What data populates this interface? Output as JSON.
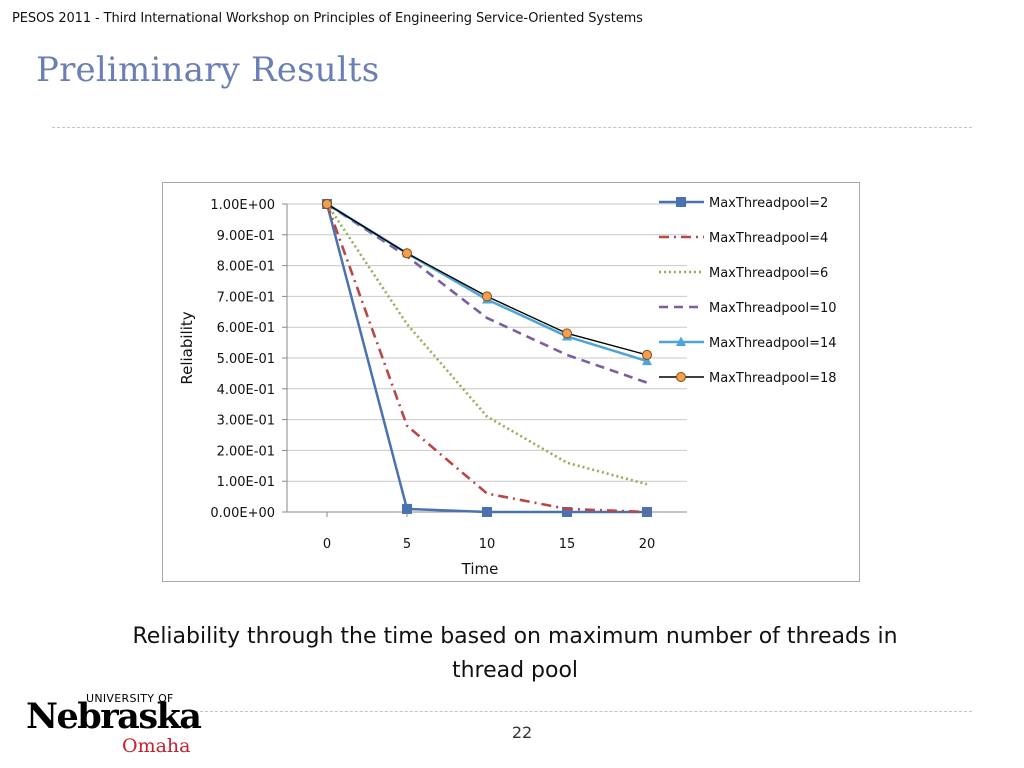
{
  "header": {
    "text": "PESOS 2011 - Third International Workshop on Principles of Engineering Service-Oriented Systems"
  },
  "slide": {
    "title": "Preliminary Results",
    "caption_line1": "Reliability through the time based on maximum number of threads in",
    "caption_line2": "thread pool",
    "page_number": "22"
  },
  "logo": {
    "line1": "UNIVERSITY OF",
    "line2": "Nebraska",
    "line3": "Omaha"
  },
  "chart_data": {
    "type": "line",
    "xlabel": "Time",
    "ylabel": "Reliability",
    "x": [
      0,
      5,
      10,
      15,
      20
    ],
    "x_tick_labels": [
      "0",
      "5",
      "10",
      "15",
      "20"
    ],
    "y_tick_labels": [
      "0.00E+00",
      "1.00E-01",
      "2.00E-01",
      "3.00E-01",
      "4.00E-01",
      "5.00E-01",
      "6.00E-01",
      "7.00E-01",
      "8.00E-01",
      "9.00E-01",
      "1.00E+00"
    ],
    "ylim": [
      0,
      1
    ],
    "grid": true,
    "legend": "right",
    "series": [
      {
        "name": "MaxThreadpool=2",
        "values": [
          1.0,
          0.01,
          0.0,
          0.0,
          0.0
        ],
        "color": "#4a72b0",
        "dash": "solid",
        "marker": "square"
      },
      {
        "name": "MaxThreadpool=4",
        "values": [
          1.0,
          0.28,
          0.06,
          0.01,
          0.0
        ],
        "color": "#b84746",
        "dash": "dashdot",
        "marker": "none"
      },
      {
        "name": "MaxThreadpool=6",
        "values": [
          1.0,
          0.61,
          0.31,
          0.16,
          0.09
        ],
        "color": "#94ad55",
        "dash": "dot",
        "marker": "none"
      },
      {
        "name": "MaxThreadpool=10",
        "values": [
          1.0,
          0.83,
          0.63,
          0.51,
          0.42
        ],
        "color": "#7a5fa0",
        "dash": "dash",
        "marker": "none"
      },
      {
        "name": "MaxThreadpool=14",
        "values": [
          1.0,
          0.84,
          0.69,
          0.57,
          0.49
        ],
        "color": "#4fa4d6",
        "dash": "solid",
        "marker": "triangle"
      },
      {
        "name": "MaxThreadpool=18",
        "values": [
          1.0,
          0.84,
          0.7,
          0.58,
          0.51
        ],
        "color": "#000000",
        "dash": "solid",
        "marker": "circle"
      }
    ]
  }
}
